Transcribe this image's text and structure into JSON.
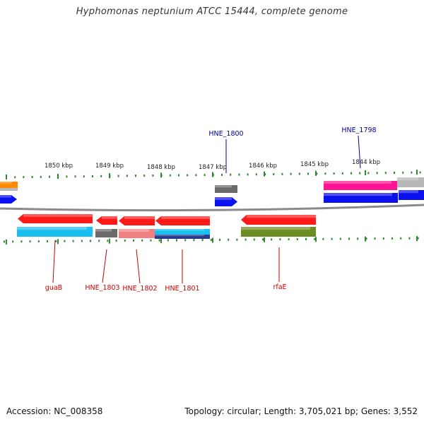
{
  "title": "Hyphomonas neptunium ATCC 15444, complete genome",
  "footer": {
    "accession": "Accession: NC_008358",
    "summary": "Topology: circular; Length: 3,705,021 bp; Genes: 3,552"
  },
  "colors": {
    "backbone": "#8a8a8a",
    "tick": "#2d8a2d",
    "label_top": "#000099",
    "label_bottom": "#cc0000",
    "gene_red": "#ff1a1a",
    "gene_blue": "#0a10ee",
    "gene_cyan": "#18bff0",
    "gene_gray": "#6a6a6a",
    "gene_salmon": "#f08080",
    "gene_navy": "#2c3a8c",
    "gene_olive": "#6b8e23",
    "gene_magenta": "#ff1493",
    "gene_silver": "#b8b8b8",
    "gene_orange": "#ff8c00"
  },
  "scale_labels": [
    "1850 kbp",
    "1849 kbp",
    "1848 kbp",
    "1847 kbp",
    "1846 kbp",
    "1845 kbp",
    "1844 kbp"
  ],
  "top_labels": [
    "HNE_1800",
    "HNE_1798"
  ],
  "bottom_labels": [
    "guaB",
    "HNE_1803",
    "HNE_1802",
    "HNE_1801",
    "rfaE"
  ]
}
